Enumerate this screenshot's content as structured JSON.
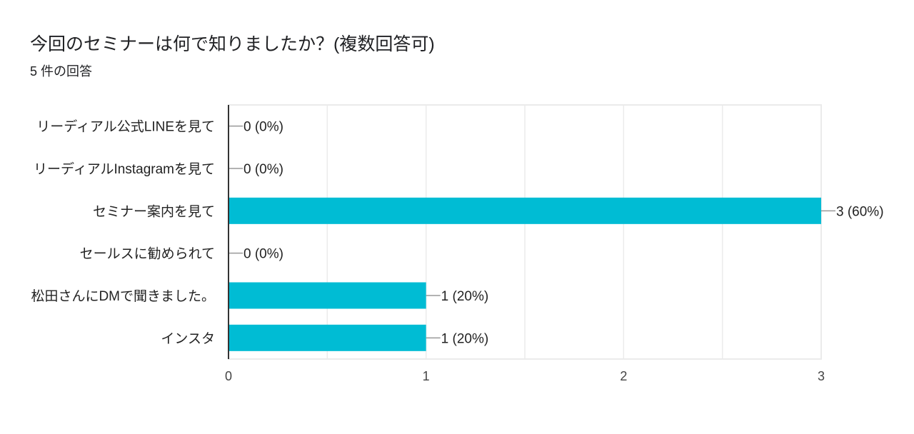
{
  "title": "今回のセミナーは何で知りましたか？(複数回答可)",
  "subtitle": "5 件の回答",
  "colors": {
    "bar": "#00bcd4",
    "grid": "#ebebeb",
    "axis": "#333333",
    "text": "#222222"
  },
  "chart_data": {
    "type": "bar",
    "orientation": "horizontal",
    "title": "今回のセミナーは何で知りましたか？(複数回答可)",
    "categories": [
      "リーディアル公式LINEを見て",
      "リーディアルInstagramを見て",
      "セミナー案内を見て",
      "セールスに勧められて",
      "松田さんにDMで聞きました。",
      "インスタ"
    ],
    "values": [
      0,
      0,
      3,
      0,
      1,
      1
    ],
    "data_labels": [
      "0 (0%)",
      "0 (0%)",
      "3 (60%)",
      "0 (0%)",
      "1 (20%)",
      "1 (20%)"
    ],
    "xlim": [
      0,
      3
    ],
    "xticks": [
      "0",
      "1",
      "2",
      "3"
    ],
    "grid": true,
    "legend": "none"
  }
}
